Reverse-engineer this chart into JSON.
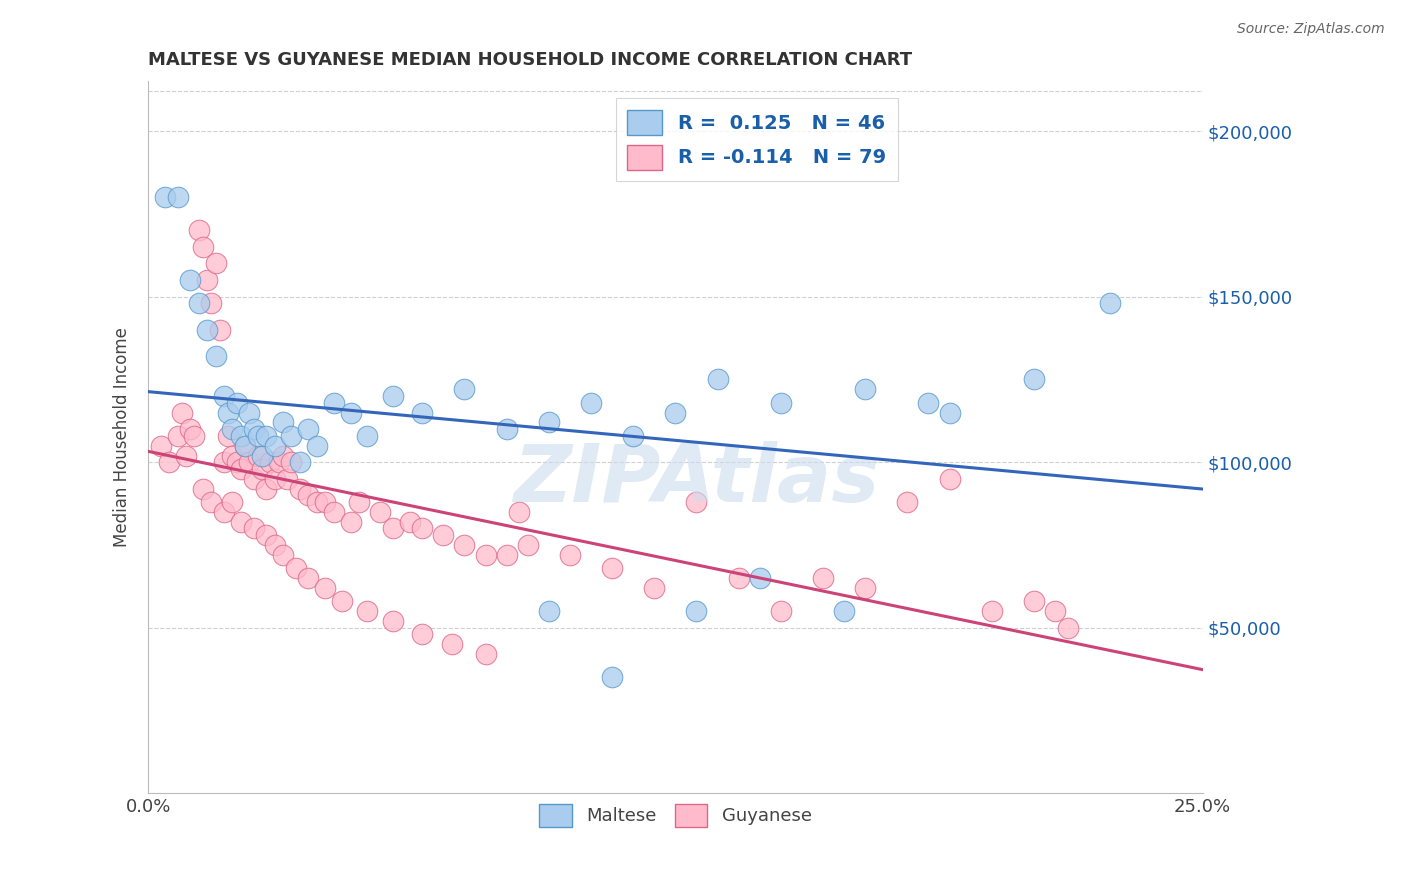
{
  "title": "MALTESE VS GUYANESE MEDIAN HOUSEHOLD INCOME CORRELATION CHART",
  "source": "Source: ZipAtlas.com",
  "ylabel": "Median Household Income",
  "xlim": [
    0.0,
    0.25
  ],
  "ylim": [
    0,
    215000
  ],
  "background_color": "#ffffff",
  "grid_color": "#d0d0d0",
  "maltese_color": "#aaccee",
  "maltese_edge_color": "#5599cc",
  "maltese_line_color": "#3366bb",
  "guyanese_color": "#ffbbcc",
  "guyanese_edge_color": "#dd6688",
  "guyanese_line_color": "#cc4477",
  "legend_color": "#1a5faa",
  "maltese_x": [
    0.004,
    0.007,
    0.01,
    0.012,
    0.014,
    0.016,
    0.018,
    0.019,
    0.02,
    0.021,
    0.022,
    0.023,
    0.024,
    0.025,
    0.026,
    0.027,
    0.028,
    0.03,
    0.032,
    0.034,
    0.036,
    0.038,
    0.04,
    0.044,
    0.048,
    0.052,
    0.058,
    0.065,
    0.075,
    0.085,
    0.095,
    0.105,
    0.115,
    0.125,
    0.135,
    0.15,
    0.17,
    0.19,
    0.21,
    0.228,
    0.095,
    0.11,
    0.13,
    0.145,
    0.165,
    0.185
  ],
  "maltese_y": [
    180000,
    180000,
    155000,
    148000,
    140000,
    132000,
    120000,
    115000,
    110000,
    118000,
    108000,
    105000,
    115000,
    110000,
    108000,
    102000,
    108000,
    105000,
    112000,
    108000,
    100000,
    110000,
    105000,
    118000,
    115000,
    108000,
    120000,
    115000,
    122000,
    110000,
    112000,
    118000,
    108000,
    115000,
    125000,
    118000,
    122000,
    115000,
    125000,
    148000,
    55000,
    35000,
    55000,
    65000,
    55000,
    118000
  ],
  "guyanese_x": [
    0.003,
    0.005,
    0.007,
    0.008,
    0.009,
    0.01,
    0.011,
    0.012,
    0.013,
    0.014,
    0.015,
    0.016,
    0.017,
    0.018,
    0.019,
    0.02,
    0.021,
    0.022,
    0.023,
    0.024,
    0.025,
    0.026,
    0.027,
    0.028,
    0.029,
    0.03,
    0.031,
    0.032,
    0.033,
    0.034,
    0.036,
    0.038,
    0.04,
    0.042,
    0.044,
    0.048,
    0.05,
    0.055,
    0.058,
    0.062,
    0.065,
    0.07,
    0.075,
    0.08,
    0.085,
    0.09,
    0.1,
    0.11,
    0.12,
    0.13,
    0.14,
    0.15,
    0.16,
    0.17,
    0.18,
    0.19,
    0.2,
    0.21,
    0.215,
    0.218,
    0.013,
    0.015,
    0.018,
    0.02,
    0.022,
    0.025,
    0.028,
    0.03,
    0.032,
    0.035,
    0.038,
    0.042,
    0.046,
    0.052,
    0.058,
    0.065,
    0.072,
    0.08,
    0.088
  ],
  "guyanese_y": [
    105000,
    100000,
    108000,
    115000,
    102000,
    110000,
    108000,
    170000,
    165000,
    155000,
    148000,
    160000,
    140000,
    100000,
    108000,
    102000,
    100000,
    98000,
    105000,
    100000,
    95000,
    102000,
    98000,
    92000,
    100000,
    95000,
    100000,
    102000,
    95000,
    100000,
    92000,
    90000,
    88000,
    88000,
    85000,
    82000,
    88000,
    85000,
    80000,
    82000,
    80000,
    78000,
    75000,
    72000,
    72000,
    75000,
    72000,
    68000,
    62000,
    88000,
    65000,
    55000,
    65000,
    62000,
    88000,
    95000,
    55000,
    58000,
    55000,
    50000,
    92000,
    88000,
    85000,
    88000,
    82000,
    80000,
    78000,
    75000,
    72000,
    68000,
    65000,
    62000,
    58000,
    55000,
    52000,
    48000,
    45000,
    42000,
    85000
  ]
}
